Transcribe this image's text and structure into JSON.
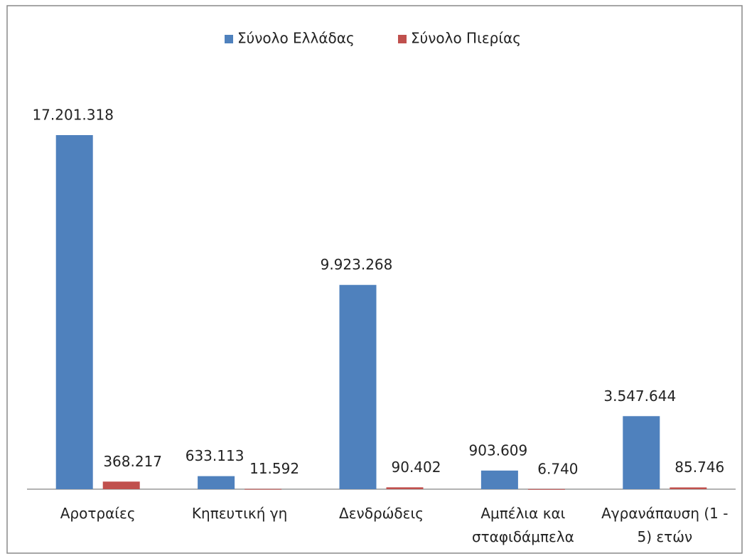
{
  "chart_data": {
    "type": "bar",
    "categories": [
      "Αροτραίες",
      "Κηπευτική γη",
      "Δενδρώδεις",
      "Αμπέλια και σταφιδάμπελα",
      "Αγρανάπαυση (1 - 5) ετών"
    ],
    "series": [
      {
        "name": "Σύνολο Ελλάδας",
        "color": "#4f81bd",
        "values": [
          17201318,
          633113,
          9923268,
          903609,
          3547644
        ],
        "value_labels": [
          "17.201.318",
          "633.113",
          "9.923.268",
          "903.609",
          "3.547.644"
        ]
      },
      {
        "name": "Σύνολο Πιερίας",
        "color": "#c0504d",
        "values": [
          368217,
          11592,
          90402,
          6740,
          85746
        ],
        "value_labels": [
          "368.217",
          "11.592",
          "90.402",
          "6.740",
          "85.746"
        ]
      }
    ],
    "ylim": [
      0,
      20000000
    ],
    "legend": "top"
  }
}
